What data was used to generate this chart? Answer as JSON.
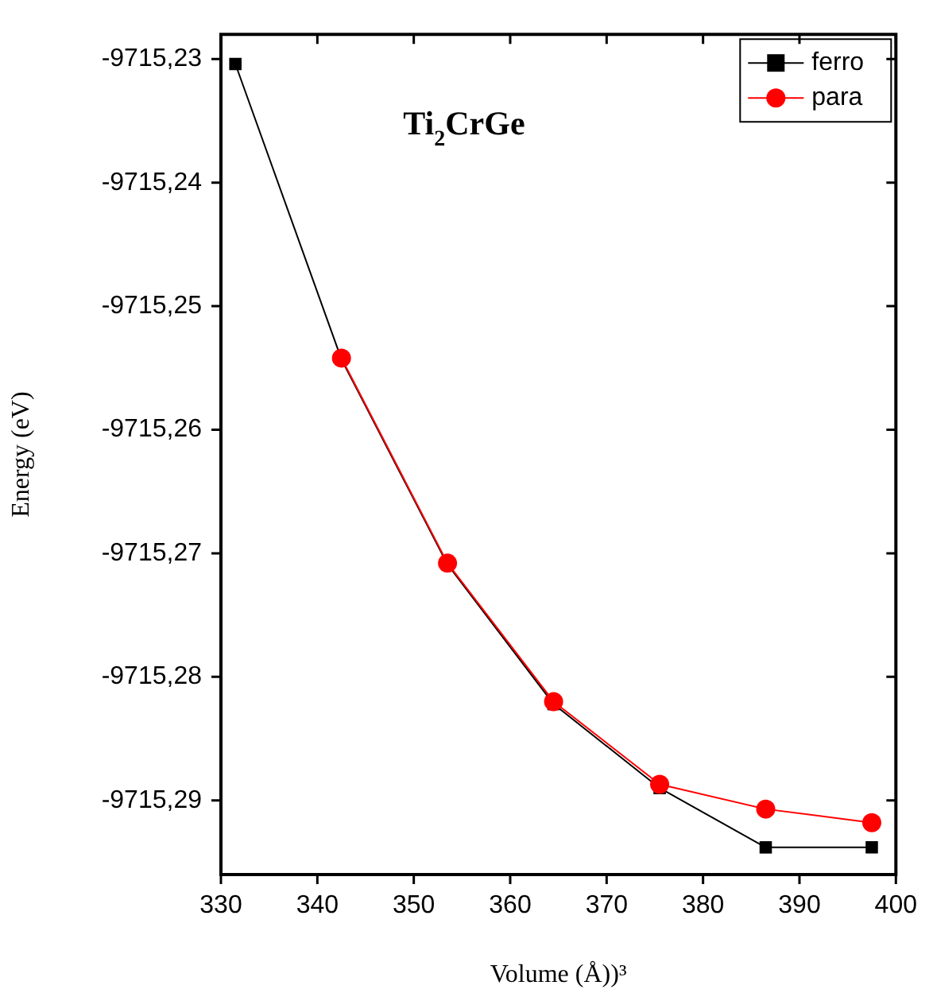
{
  "chart_data": {
    "type": "line",
    "title": "Ti$_{2}$CrGe",
    "xlabel": "Volume (Å))³",
    "ylabel": "Energy (eV)",
    "x": [
      331.5,
      342.5,
      353.5,
      364.5,
      375.5,
      386.5,
      397.5
    ],
    "series": [
      {
        "name": "ferro",
        "color": "#000000",
        "marker": "square",
        "values": [
          -9715.2304,
          -9715.2543,
          -9715.2709,
          -9715.2822,
          -9715.289,
          -9715.2938,
          -9715.2938
        ]
      },
      {
        "name": "para",
        "color": "#ff0000",
        "marker": "circle",
        "values": [
          null,
          -9715.2542,
          -9715.2708,
          -9715.282,
          -9715.2887,
          -9715.2907,
          -9715.2918
        ]
      }
    ],
    "xlim": [
      330,
      400
    ],
    "xticks": [
      330,
      340,
      350,
      360,
      370,
      380,
      390,
      400
    ],
    "ylim": [
      -9715.296,
      -9715.228
    ],
    "yticks": [
      {
        "value": -9715.29,
        "label": "-9715,29"
      },
      {
        "value": -9715.28,
        "label": "-9715,28"
      },
      {
        "value": -9715.27,
        "label": "-9715,27"
      },
      {
        "value": -9715.26,
        "label": "-9715,26"
      },
      {
        "value": -9715.25,
        "label": "-9715,25"
      },
      {
        "value": -9715.24,
        "label": "-9715,24"
      },
      {
        "value": -9715.23,
        "label": "-9715,23"
      }
    ],
    "grid": false,
    "legend": "top right",
    "line_style": "solid"
  }
}
